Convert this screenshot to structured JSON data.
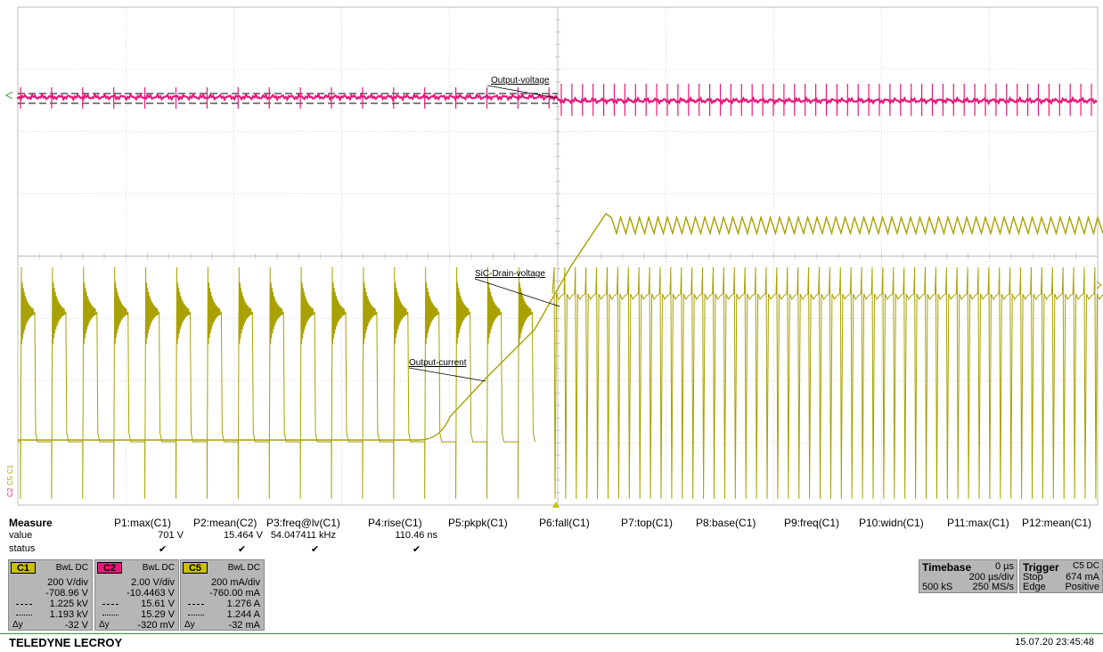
{
  "traces": {
    "output_voltage_label": "Output-voltage",
    "drain_voltage_label": "SiC-Drain-voltage",
    "output_current_label": "Output-current",
    "colors": {
      "drain_voltage": "#a9a100",
      "output_voltage": "#e8197a",
      "output_current": "#a9a100",
      "grid": "#bdbdbd"
    }
  },
  "measure": {
    "title": "Measure",
    "row_labels": {
      "value": "value",
      "status": "status"
    },
    "params": [
      {
        "name": "P1:max(C1)",
        "value": "701 V",
        "status": "✔"
      },
      {
        "name": "P2:mean(C2)",
        "value": "15.464 V",
        "status": "✔"
      },
      {
        "name": "P3:freq@lv(C1)",
        "value": "54.047411 kHz",
        "status": "✔"
      },
      {
        "name": "P4:rise(C1)",
        "value": "110.46 ns",
        "status": "✔"
      },
      {
        "name": "P5:pkpk(C1)",
        "value": "",
        "status": ""
      },
      {
        "name": "P6:fall(C1)",
        "value": "",
        "status": ""
      },
      {
        "name": "P7:top(C1)",
        "value": "",
        "status": ""
      },
      {
        "name": "P8:base(C1)",
        "value": "",
        "status": ""
      },
      {
        "name": "P9:freq(C1)",
        "value": "",
        "status": ""
      },
      {
        "name": "P10:widn(C1)",
        "value": "",
        "status": ""
      },
      {
        "name": "P11:max(C1)",
        "value": "",
        "status": ""
      },
      {
        "name": "P12:mean(C1)",
        "value": "",
        "status": ""
      }
    ]
  },
  "channels": [
    {
      "id": "C1",
      "coupling": "BwL DC",
      "vdiv": "200 V/div",
      "offset": "-708.96 V",
      "cursor1": "1.225 kV",
      "cursor2": "1.193 kV",
      "delta_label": "Δy",
      "delta": "-32 V",
      "color": "#c8c000"
    },
    {
      "id": "C2",
      "coupling": "BwL DC",
      "vdiv": "2.00 V/div",
      "offset": "-10.4463 V",
      "cursor1": "15.61 V",
      "cursor2": "15.29 V",
      "delta_label": "Δy",
      "delta": "-320 mV",
      "color": "#e8197a"
    },
    {
      "id": "C5",
      "coupling": "BwL DC",
      "vdiv": "200 mA/div",
      "offset": "-760.00 mA",
      "cursor1": "1.276 A",
      "cursor2": "1.244 A",
      "delta_label": "Δy",
      "delta": "-32 mA",
      "color": "#c8c000"
    }
  ],
  "timebase": {
    "title": "Timebase",
    "delay": "0 µs",
    "tdiv": "200 µs/div",
    "samples": "500 kS",
    "rate": "250 MS/s"
  },
  "trigger": {
    "title": "Trigger",
    "source": "C5 DC",
    "mode": "Stop",
    "level": "674 mA",
    "type": "Edge",
    "slope": "Positive"
  },
  "brand": "TELEDYNE LECROY",
  "timestamp": "15.07.20 23:45:48",
  "left_markers": {
    "c1": "C1",
    "c5": "C5",
    "c2": "C2"
  }
}
